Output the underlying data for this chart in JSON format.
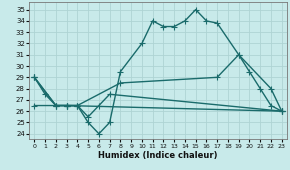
{
  "xlabel": "Humidex (Indice chaleur)",
  "bg_color": "#c8eaea",
  "grid_color": "#aed4d4",
  "line_color": "#1a6b6b",
  "xlim": [
    -0.5,
    23.5
  ],
  "ylim": [
    23.5,
    35.7
  ],
  "xticks": [
    0,
    1,
    2,
    3,
    4,
    5,
    6,
    7,
    8,
    9,
    10,
    11,
    12,
    13,
    14,
    15,
    16,
    17,
    18,
    19,
    20,
    21,
    22,
    23
  ],
  "yticks": [
    24,
    25,
    26,
    27,
    28,
    29,
    30,
    31,
    32,
    33,
    34,
    35
  ],
  "line1_x": [
    0,
    1,
    2,
    3,
    4,
    5,
    6,
    7,
    8,
    10,
    11,
    12,
    13,
    14,
    15,
    16,
    17,
    19,
    20,
    21,
    22,
    23
  ],
  "line1_y": [
    29,
    27.5,
    26.5,
    26.5,
    26.5,
    25,
    24,
    25,
    29.5,
    32,
    34,
    33.5,
    33.5,
    34,
    35,
    34,
    33.8,
    31,
    29.5,
    28,
    26.5,
    26
  ],
  "line2_x": [
    0,
    2,
    3,
    4,
    5,
    6,
    7,
    23
  ],
  "line2_y": [
    29,
    26.5,
    26.5,
    26.5,
    25.5,
    26.5,
    27.5,
    26
  ],
  "line3_x": [
    0,
    2,
    3,
    4,
    8,
    17,
    19,
    22,
    23
  ],
  "line3_y": [
    29,
    26.5,
    26.5,
    26.5,
    28.5,
    29,
    31,
    28,
    26
  ],
  "line4_x": [
    0,
    3,
    23
  ],
  "line4_y": [
    26.5,
    26.5,
    26
  ],
  "marker_size": 4,
  "line_width": 1.0
}
